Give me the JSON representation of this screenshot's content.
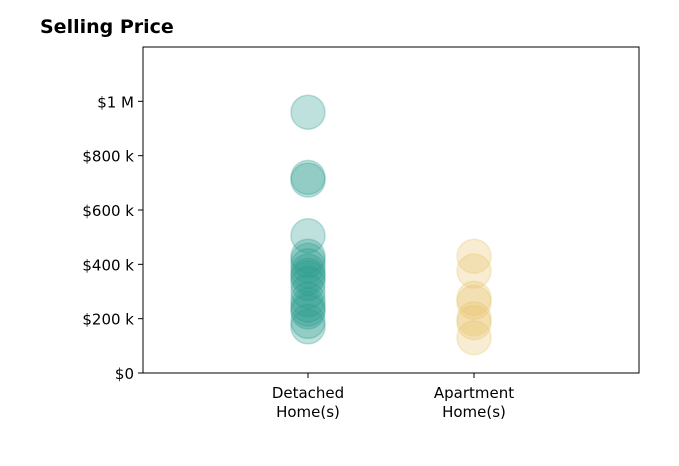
{
  "chart_data": {
    "type": "scatter",
    "title": "Selling Price",
    "xlabel": "",
    "ylabel": "",
    "categories": [
      "Detached\nHome(s)",
      "Apartment\nHome(s)"
    ],
    "ylim": [
      0,
      1200000
    ],
    "yticks": [
      {
        "value": 0,
        "label": "$0"
      },
      {
        "value": 200000,
        "label": "$200 k"
      },
      {
        "value": 400000,
        "label": "$400 k"
      },
      {
        "value": 600000,
        "label": "$600 k"
      },
      {
        "value": 800000,
        "label": "$800 k"
      },
      {
        "value": 1000000,
        "label": "$1 M"
      }
    ],
    "grid": false,
    "series": [
      {
        "category": "Detached\nHome(s)",
        "color": "#2A9D8F",
        "values": [
          960000,
          720000,
          710000,
          505000,
          430000,
          415000,
          395000,
          375000,
          360000,
          350000,
          330000,
          300000,
          270000,
          250000,
          235000,
          225000,
          190000,
          170000
        ]
      },
      {
        "category": "Apartment\nHome(s)",
        "color": "#E9C46A",
        "values": [
          430000,
          375000,
          275000,
          260000,
          200000,
          185000,
          130000
        ]
      }
    ]
  }
}
